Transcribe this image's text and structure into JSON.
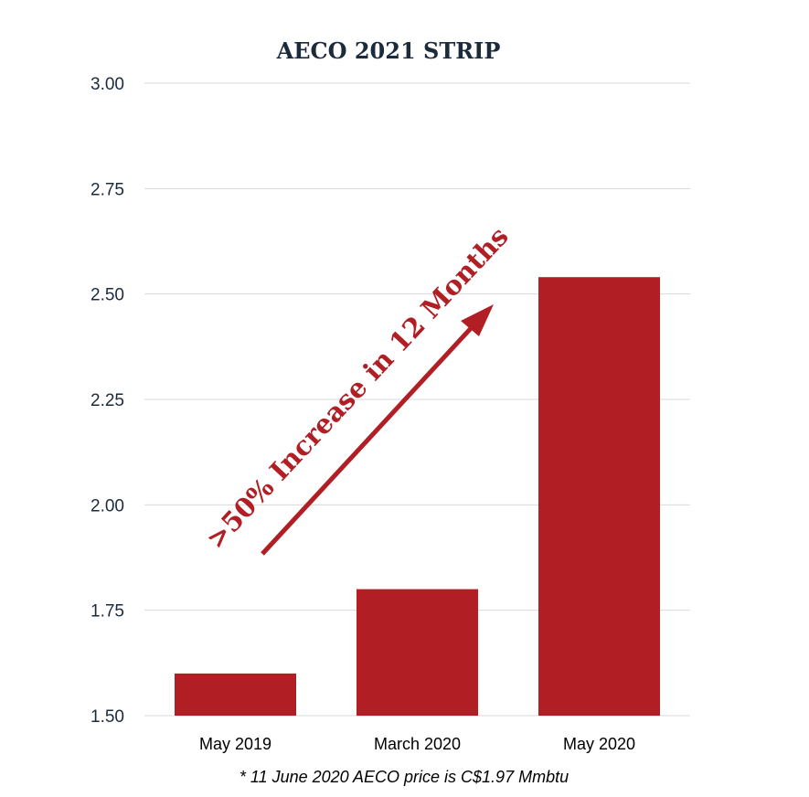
{
  "chart_data": {
    "type": "bar",
    "title": "AECO 2021 STRIP",
    "xlabel": "",
    "ylabel": "",
    "categories": [
      "May 2019",
      "March 2020",
      "May 2020"
    ],
    "values": [
      1.6,
      1.8,
      2.54
    ],
    "ylim": [
      1.5,
      3.0
    ],
    "yticks": [
      "1.50",
      "1.75",
      "2.00",
      "2.25",
      "2.50",
      "2.75",
      "3.00"
    ],
    "grid": true,
    "bar_color": "#b11f24",
    "annotation": ">50% Increase in 12 Months",
    "annotation_color": "#b11f24",
    "footnote": "* 11 June 2020 AECO price is C$1.97 Mmbtu"
  }
}
